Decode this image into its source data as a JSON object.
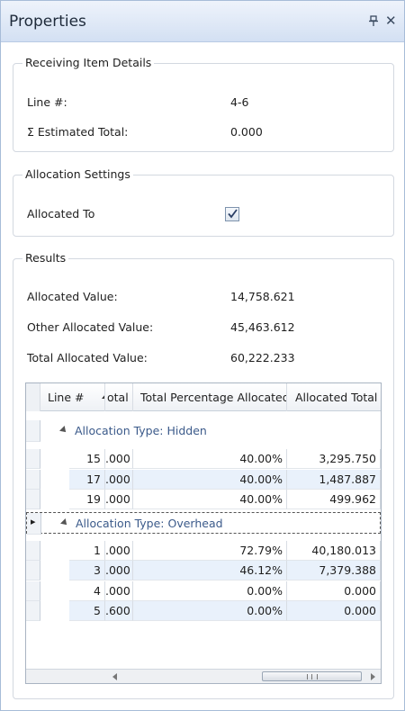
{
  "panel": {
    "title": "Properties",
    "pin_glyph": "▐",
    "close_glyph": "✕"
  },
  "receiving": {
    "legend": "Receiving Item Details",
    "line_label": "Line #:",
    "line_value": "4-6",
    "estimated_label": "Σ Estimated Total:",
    "estimated_value": "0.000"
  },
  "allocation": {
    "legend": "Allocation Settings",
    "allocated_to_label": "Allocated To",
    "allocated_to_checked": true
  },
  "results": {
    "legend": "Results",
    "allocated_value_label": "Allocated Value:",
    "allocated_value": "14,758.621",
    "other_allocated_label": "Other Allocated Value:",
    "other_allocated_value": "45,463.612",
    "total_allocated_label": "Total Allocated Value:",
    "total_allocated_value": "60,222.233"
  },
  "grid": {
    "columns": [
      "Line #",
      "otal",
      "Total Percentage Allocated",
      "Allocated Total"
    ],
    "groups": [
      {
        "label": "Allocation Type: Hidden",
        "rows": [
          {
            "line": "15",
            "total": ".000",
            "pct": "40.00%",
            "alloc": "3,295.750"
          },
          {
            "line": "17",
            "total": ".000",
            "pct": "40.00%",
            "alloc": "1,487.887"
          },
          {
            "line": "19",
            "total": ".000",
            "pct": "40.00%",
            "alloc": "499.962"
          }
        ]
      },
      {
        "label": "Allocation Type: Overhead",
        "rows": [
          {
            "line": "1",
            "total": ".000",
            "pct": "72.79%",
            "alloc": "40,180.013"
          },
          {
            "line": "3",
            "total": ".000",
            "pct": "46.12%",
            "alloc": "7,379.388"
          },
          {
            "line": "4",
            "total": ".000",
            "pct": "0.00%",
            "alloc": "0.000"
          },
          {
            "line": "5",
            "total": ".600",
            "pct": "0.00%",
            "alloc": "0.000"
          }
        ]
      }
    ],
    "current_row_indicator": "▸",
    "scroll_grip": "III"
  }
}
